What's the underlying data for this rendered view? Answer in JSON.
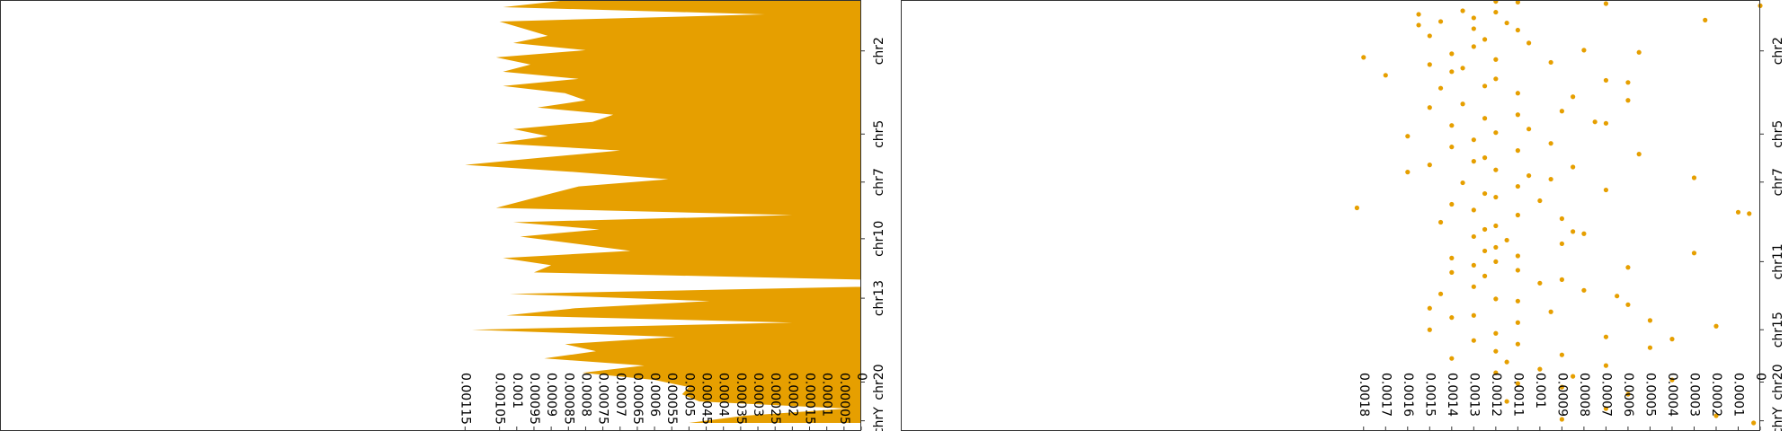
{
  "chart_data": [
    {
      "type": "area",
      "color": "#e69f00",
      "positions": [
        0,
        1,
        2,
        3,
        4,
        5,
        6,
        7,
        8,
        9,
        10,
        11,
        12,
        13,
        14,
        15,
        16,
        17,
        18,
        19,
        20,
        21,
        22,
        23,
        24,
        25,
        26,
        27,
        28,
        29,
        30,
        31,
        32,
        33,
        34,
        35,
        36,
        37,
        38,
        39,
        40,
        41,
        42,
        43,
        44,
        45,
        46,
        47,
        48,
        49,
        50,
        51,
        52,
        53,
        54,
        55,
        56,
        57,
        58,
        59
      ],
      "values": [
        0.00085,
        0.00104,
        0.00028,
        0.00105,
        0.00098,
        0.00091,
        0.00101,
        0.0008,
        0.00106,
        0.00096,
        0.00104,
        0.00082,
        0.00104,
        0.00086,
        0.0008,
        0.00094,
        0.00072,
        0.00078,
        0.00101,
        0.00091,
        0.00106,
        0.0007,
        0.00093,
        0.00115,
        0.00083,
        0.00056,
        0.00082,
        0.0009,
        0.00098,
        0.00106,
        0.0002,
        0.00101,
        0.00076,
        0.00099,
        0.00083,
        0.00067,
        0.00104,
        0.0009,
        0.00095,
        0,
        0,
        0.00102,
        0.00044,
        0.00083,
        0.00103,
        0.0002,
        0.00113,
        0.00054,
        0.00086,
        0.00077,
        0.00092,
        0.00063,
        0.00081,
        0.0006,
        0.0005,
        0.00052,
        0.00047,
        4e-05,
        0.00034,
        0.0005
      ],
      "xlim": [
        0.0025,
        0
      ],
      "xticks": [
        0,
        5e-05,
        0.0001,
        0.00015,
        0.0002,
        0.00025,
        0.0003,
        0.00035,
        0.0004,
        0.00045,
        0.0005,
        0.00055,
        0.0006,
        0.00065,
        0.0007,
        0.00075,
        0.0008,
        0.00085,
        0.0009,
        0.00095,
        0.001,
        0.00105,
        0.00115
      ],
      "ylim": [
        0,
        60
      ],
      "yticks": [
        {
          "value": 7.1,
          "label": "chr2"
        },
        {
          "value": 18.7,
          "label": "chr5"
        },
        {
          "value": 25.4,
          "label": "chr7"
        },
        {
          "value": 33.3,
          "label": "chr10"
        },
        {
          "value": 41.6,
          "label": "chr13"
        },
        {
          "value": 53.3,
          "label": "chr20"
        },
        {
          "value": 58.7,
          "label": "chrY"
        }
      ]
    },
    {
      "type": "scatter",
      "color": "#e69f00",
      "positions": [
        0.2,
        0.3,
        0.5,
        0.8,
        1.5,
        1.7,
        2,
        2.5,
        2.8,
        3,
        3.2,
        3.5,
        4,
        4.2,
        5,
        5.5,
        6,
        6.5,
        7,
        7.3,
        7.5,
        8,
        8.3,
        8.7,
        9,
        9.5,
        10,
        10.5,
        11,
        11.2,
        11.5,
        12,
        12.3,
        13,
        13.5,
        14,
        14.5,
        15,
        15.5,
        16,
        16.5,
        17,
        17.2,
        17.5,
        18,
        18.5,
        19,
        19.5,
        20,
        20.5,
        21,
        21.5,
        22,
        22.5,
        23,
        23.3,
        23.7,
        24,
        24.5,
        24.8,
        25,
        25.5,
        26,
        26.5,
        27,
        27.5,
        28,
        28.5,
        29,
        29.3,
        29.6,
        29.8,
        30,
        30.5,
        31,
        31.5,
        32,
        32.3,
        32.6,
        33,
        33.5,
        34,
        34.5,
        35,
        35.3,
        35.7,
        36,
        36.5,
        37,
        37.3,
        37.7,
        38,
        38.5,
        39,
        39.5,
        40,
        40.5,
        41,
        41.3,
        41.7,
        42,
        42.5,
        43,
        43.5,
        44,
        44.3,
        44.7,
        45,
        45.5,
        46,
        46.5,
        47,
        47.3,
        47.5,
        48,
        48.5,
        49,
        49.5,
        50,
        50.5,
        51,
        51.5,
        52,
        52.5,
        53,
        53.5,
        54,
        55,
        56,
        57,
        58,
        58.5,
        59
      ],
      "values": [
        0.0012,
        0.0011,
        0.0007,
        0,
        0.00135,
        0.0012,
        0.00155,
        0.0013,
        0.00025,
        0.00145,
        0.00115,
        0.00155,
        0.0013,
        0.0011,
        0.0015,
        0.00125,
        0.00105,
        0.0013,
        0.0008,
        0.00055,
        0.0014,
        0.0018,
        0.0012,
        0.00095,
        0.0015,
        0.00135,
        0.0014,
        0.0017,
        0.0012,
        0.0007,
        0.0006,
        0.00125,
        0.00145,
        0.0011,
        0.00085,
        0.0006,
        0.00135,
        0.0015,
        0.0009,
        0.0011,
        0.00125,
        0.00075,
        0.0007,
        0.0014,
        0.00105,
        0.0012,
        0.0016,
        0.0013,
        0.00095,
        0.0014,
        0.0011,
        0.00055,
        0.00125,
        0.0013,
        0.0015,
        0.00085,
        0.0012,
        0.0016,
        0.00105,
        0.0003,
        0.00095,
        0.00135,
        0.0011,
        0.0007,
        0.00125,
        0.0012,
        0.001,
        0.0014,
        0.00183,
        0.0013,
        0.0001,
        5e-05,
        0.0011,
        0.0009,
        0.00145,
        0.0012,
        0.00125,
        0.00085,
        0.0008,
        0.0013,
        0.00115,
        0.0009,
        0.0012,
        0.00125,
        0.0003,
        0.0011,
        0.0014,
        0.0012,
        0.0013,
        0.0006,
        0.0011,
        0.0014,
        0.00125,
        0.0009,
        0.001,
        0.0013,
        0.0008,
        0.00145,
        0.00065,
        0.0012,
        0.0011,
        0.0006,
        0.0015,
        0.00095,
        0.0013,
        0.0014,
        0.0005,
        0.0011,
        0.0002,
        0.0015,
        0.0012,
        0.0007,
        0.0004,
        0.0013,
        0.0011,
        0.0005,
        0.0012,
        0.0009,
        0.0014,
        0.00115,
        0.0007,
        0.001,
        0.0012,
        0.00085,
        0.0004,
        0.0011,
        0.0009,
        0.0006,
        0.00115,
        0.0007,
        0.0002,
        0.0009,
        3e-05
      ],
      "xlim": [
        0.0039,
        0
      ],
      "xticks": [
        0,
        0.0001,
        0.0002,
        0.0003,
        0.0004,
        0.0005,
        0.0006,
        0.0007,
        0.0008,
        0.0009,
        0.001,
        0.0011,
        0.0012,
        0.0013,
        0.0014,
        0.0015,
        0.0016,
        0.0017,
        0.0018
      ],
      "ylim": [
        0,
        60
      ],
      "yticks": [
        {
          "value": 7.1,
          "label": "chr2"
        },
        {
          "value": 18.7,
          "label": "chr5"
        },
        {
          "value": 25.4,
          "label": "chr7"
        },
        {
          "value": 36.5,
          "label": "chr11"
        },
        {
          "value": 46,
          "label": "chr15"
        },
        {
          "value": 53.3,
          "label": "chr20"
        },
        {
          "value": 58.7,
          "label": "chrY"
        }
      ]
    }
  ]
}
